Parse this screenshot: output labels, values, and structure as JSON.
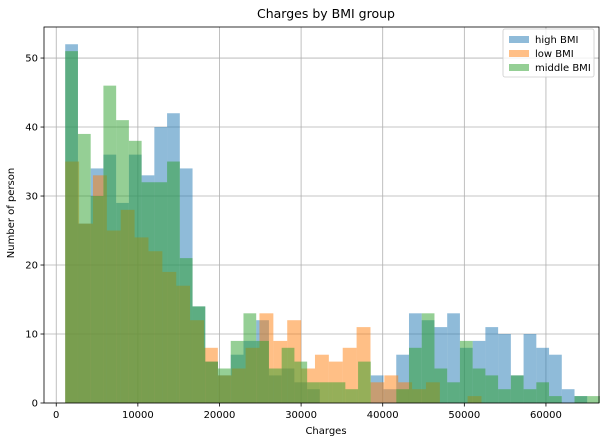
{
  "chart_data": {
    "type": "histogram",
    "title": "Charges by BMI group",
    "xlabel": "Charges",
    "ylabel": "Number of person",
    "xlim": [
      -1500,
      66500
    ],
    "ylim": [
      0,
      54.5
    ],
    "xticks": [
      0,
      10000,
      20000,
      30000,
      40000,
      50000,
      60000
    ],
    "yticks": [
      0,
      10,
      20,
      30,
      40,
      50
    ],
    "grid": true,
    "legend_position": "top-right",
    "series": [
      {
        "name": "high BMI",
        "color": "#1f77b4",
        "bin_start": 1100,
        "bin_width": 1560,
        "counts": [
          52,
          26,
          34,
          36,
          29,
          36,
          33,
          40,
          42,
          34,
          14,
          6,
          4,
          7,
          9,
          12,
          4,
          5,
          3,
          2,
          0,
          0,
          0,
          0,
          4,
          2,
          7,
          13,
          12,
          11,
          13,
          8,
          9,
          11,
          10,
          4,
          10,
          8,
          7,
          2,
          1,
          0,
          0,
          1,
          0,
          0,
          1,
          1,
          0,
          0
        ]
      },
      {
        "name": "low BMI",
        "color": "#ff7f0e",
        "bin_start": 1100,
        "bin_width": 1700,
        "counts": [
          35,
          26,
          33,
          25,
          28,
          24,
          22,
          19,
          17,
          12,
          8,
          4,
          5,
          8,
          13,
          9,
          12,
          5,
          7,
          6,
          8,
          11,
          3,
          4,
          3,
          2,
          3,
          0,
          0,
          1
        ]
      },
      {
        "name": "middle BMI",
        "color": "#2ca02c",
        "bin_start": 1100,
        "bin_width": 1560,
        "counts": [
          51,
          39,
          30,
          46,
          41,
          38,
          32,
          32,
          35,
          21,
          14,
          6,
          5,
          9,
          13,
          9,
          5,
          8,
          6,
          3,
          3,
          3,
          2,
          6,
          0,
          0,
          2,
          8,
          13,
          5,
          3,
          9,
          5,
          4,
          2,
          4,
          2,
          3,
          1,
          0,
          1,
          1,
          0,
          1,
          0,
          0,
          0,
          0,
          0,
          1
        ]
      }
    ]
  }
}
